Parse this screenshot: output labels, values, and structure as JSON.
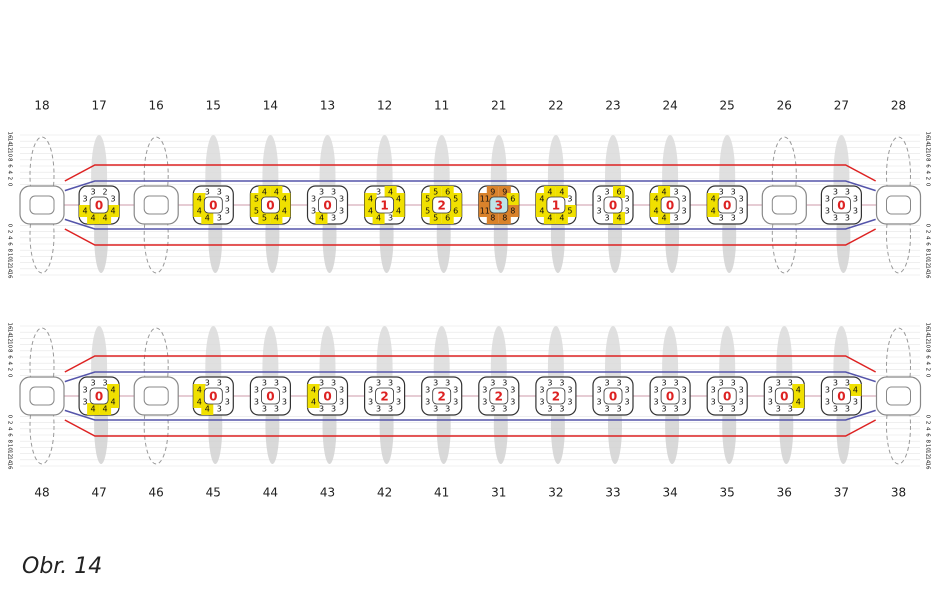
{
  "scale": [
    16,
    14,
    12,
    10,
    8,
    6,
    4,
    2,
    0
  ],
  "upper_jaw": {
    "teeth": [
      {
        "number": 18
      },
      {
        "number": 17,
        "score": 0,
        "sites": [
          3,
          2,
          3,
          4,
          4,
          4,
          4,
          3
        ]
      },
      {
        "number": 16
      },
      {
        "number": 15,
        "score": 0,
        "sites": [
          3,
          3,
          3,
          3,
          3,
          4,
          4,
          4
        ]
      },
      {
        "number": 14,
        "score": 0,
        "sites": [
          4,
          4,
          4,
          4,
          4,
          5,
          5,
          5
        ]
      },
      {
        "number": 13,
        "score": 0,
        "sites": [
          3,
          3,
          3,
          3,
          3,
          4,
          3,
          3
        ]
      },
      {
        "number": 12,
        "score": 1,
        "sites": [
          3,
          4,
          4,
          4,
          3,
          4,
          4,
          4
        ]
      },
      {
        "number": 11,
        "score": 2,
        "sites": [
          5,
          6,
          5,
          6,
          6,
          5,
          5,
          5
        ]
      },
      {
        "number": 21,
        "score": 3,
        "sites": [
          9,
          9,
          6,
          8,
          8,
          8,
          11,
          11
        ]
      },
      {
        "number": 22,
        "score": 1,
        "sites": [
          4,
          4,
          3,
          5,
          4,
          4,
          4,
          4
        ]
      },
      {
        "number": 23,
        "score": 0,
        "sites": [
          3,
          6,
          3,
          3,
          4,
          3,
          3,
          3
        ]
      },
      {
        "number": 24,
        "score": 0,
        "sites": [
          4,
          3,
          3,
          3,
          3,
          4,
          4,
          4
        ]
      },
      {
        "number": 25,
        "score": 0,
        "sites": [
          3,
          3,
          3,
          3,
          3,
          3,
          4,
          4
        ]
      },
      {
        "number": 26
      },
      {
        "number": 27,
        "score": 0,
        "sites": [
          3,
          3,
          3,
          3,
          3,
          3,
          3,
          3
        ]
      },
      {
        "number": 28
      }
    ]
  },
  "lower_jaw": {
    "teeth": [
      {
        "number": 48
      },
      {
        "number": 47,
        "score": 0,
        "sites": [
          3,
          3,
          4,
          4,
          4,
          4,
          3,
          3
        ]
      },
      {
        "number": 46
      },
      {
        "number": 45,
        "score": 0,
        "sites": [
          3,
          3,
          3,
          3,
          3,
          4,
          4,
          4
        ]
      },
      {
        "number": 44,
        "score": 0,
        "sites": [
          3,
          3,
          3,
          3,
          3,
          3,
          3,
          3
        ]
      },
      {
        "number": 43,
        "score": 0,
        "sites": [
          3,
          3,
          3,
          3,
          3,
          3,
          4,
          4
        ]
      },
      {
        "number": 42,
        "score": 2,
        "sites": [
          3,
          3,
          3,
          3,
          3,
          3,
          3,
          3
        ]
      },
      {
        "number": 41,
        "score": 2,
        "sites": [
          3,
          3,
          3,
          3,
          3,
          3,
          3,
          3
        ]
      },
      {
        "number": 31,
        "score": 2,
        "sites": [
          3,
          3,
          3,
          3,
          3,
          3,
          3,
          3
        ]
      },
      {
        "number": 32,
        "score": 2,
        "sites": [
          3,
          3,
          3,
          3,
          3,
          3,
          3,
          3
        ]
      },
      {
        "number": 33,
        "score": 0,
        "sites": [
          3,
          3,
          3,
          3,
          3,
          3,
          3,
          3
        ]
      },
      {
        "number": 34,
        "score": 0,
        "sites": [
          3,
          3,
          3,
          3,
          3,
          3,
          3,
          3
        ]
      },
      {
        "number": 35,
        "score": 0,
        "sites": [
          3,
          3,
          3,
          3,
          3,
          3,
          3,
          3
        ]
      },
      {
        "number": 36,
        "score": 0,
        "sites": [
          3,
          3,
          4,
          4,
          3,
          3,
          3,
          3
        ]
      },
      {
        "number": 37,
        "score": 0,
        "sites": [
          3,
          3,
          4,
          3,
          3,
          3,
          3,
          3
        ]
      },
      {
        "number": 38
      }
    ]
  },
  "caption": "Obr. 14"
}
